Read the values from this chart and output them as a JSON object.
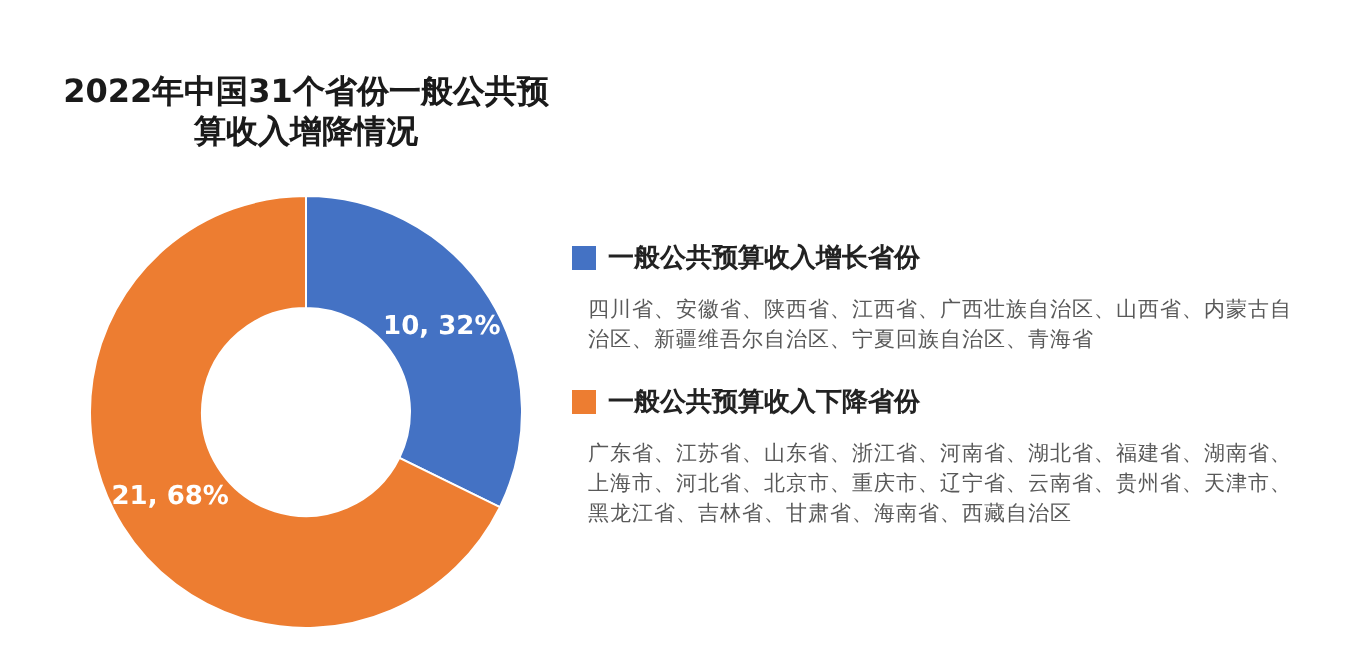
{
  "chart_data": {
    "type": "donut",
    "title": "2022年中国31个省份一般公共预算收入增降情况",
    "categories": [
      "一般公共预算收入增长省份",
      "一般公共预算收入下降省份"
    ],
    "values": [
      10,
      21
    ],
    "colors": [
      "#4472c4",
      "#ed7d31"
    ],
    "value_labels": [
      "10, 32%",
      "21, 68%"
    ],
    "legend": "right",
    "annotations": [
      "四川省、安徽省、陕西省、江西省、广西壮族自治区、山西省、内蒙古自治区、新疆维吾尔自治区、宁夏回族自治区、青海省",
      "广东省、江苏省、山东省、浙江省、河南省、湖北省、福建省、湖南省、上海市、河北省、北京市、重庆市、辽宁省、云南省、贵州省、天津市、黑龙江省、吉林省、甘肃省、海南省、西藏自治区"
    ]
  }
}
